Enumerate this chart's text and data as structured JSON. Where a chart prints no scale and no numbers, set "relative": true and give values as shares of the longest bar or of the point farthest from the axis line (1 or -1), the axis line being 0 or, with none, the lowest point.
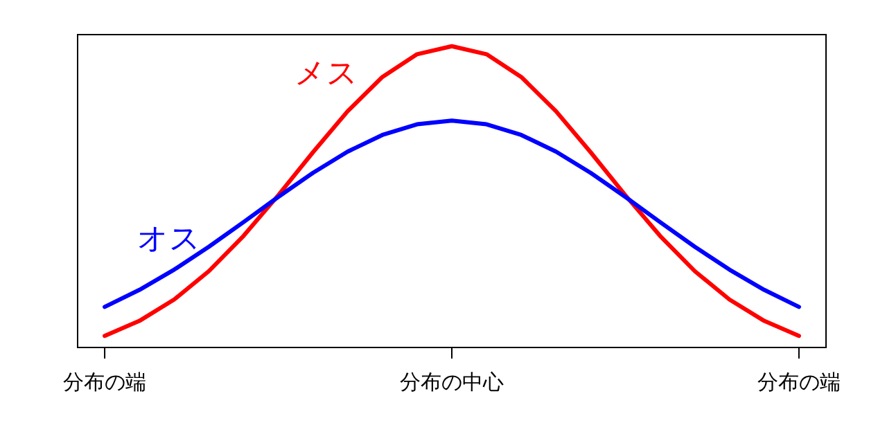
{
  "chart_data": {
    "type": "line",
    "relative": true,
    "tick_labels": "x",
    "grid": false,
    "legend": false,
    "categories": [
      "分布の端",
      null,
      null,
      null,
      null,
      null,
      null,
      null,
      null,
      null,
      "分布の中心",
      null,
      null,
      null,
      null,
      null,
      null,
      null,
      null,
      null,
      "分布の端"
    ],
    "series": [
      {
        "name": "メス",
        "color": "#ff0000",
        "values": [
          0,
          0.0517,
          0.1254,
          0.2234,
          0.3452,
          0.4854,
          0.6338,
          0.7756,
          0.8939,
          0.9724,
          1,
          0.9724,
          0.8939,
          0.7756,
          0.6338,
          0.4854,
          0.3452,
          0.2234,
          0.1254,
          0.0517,
          0
        ]
      },
      {
        "name": "オス",
        "color": "#0000ff",
        "values": [
          0.1,
          0.1588,
          0.2285,
          0.3075,
          0.3927,
          0.4797,
          0.5628,
          0.6361,
          0.6937,
          0.7304,
          0.743,
          0.7304,
          0.6937,
          0.6361,
          0.5628,
          0.4797,
          0.3927,
          0.3075,
          0.2285,
          0.1588,
          0.1
        ]
      }
    ]
  }
}
